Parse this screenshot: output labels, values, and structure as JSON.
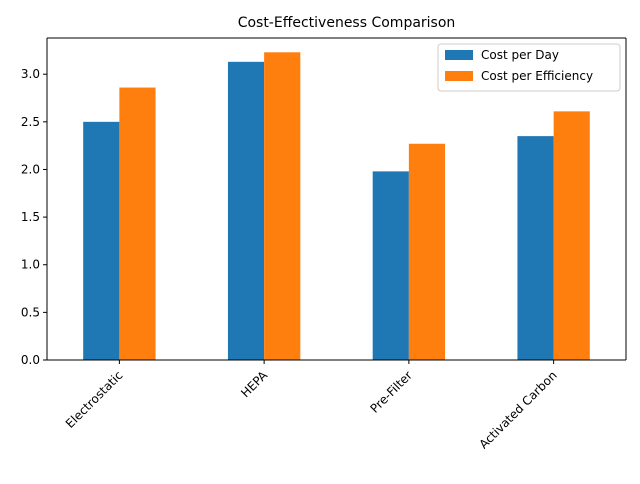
{
  "chart_data": {
    "type": "bar",
    "title": "Cost-Effectiveness Comparison",
    "xlabel": "",
    "ylabel": "",
    "categories": [
      "Electrostatic",
      "HEPA",
      "Pre-Filter",
      "Activated Carbon"
    ],
    "series": [
      {
        "name": "Cost per Day",
        "values": [
          2.5,
          3.13,
          1.98,
          2.35
        ],
        "color": "#1f77b4"
      },
      {
        "name": "Cost per Efficiency",
        "values": [
          2.86,
          3.23,
          2.27,
          2.61
        ],
        "color": "#ff7f0e"
      }
    ],
    "ylim": [
      0,
      3.38
    ],
    "yticks": [
      "0.0",
      "0.5",
      "1.0",
      "1.5",
      "2.0",
      "2.5",
      "3.0"
    ],
    "legend_position": "top-right",
    "grid": false
  }
}
